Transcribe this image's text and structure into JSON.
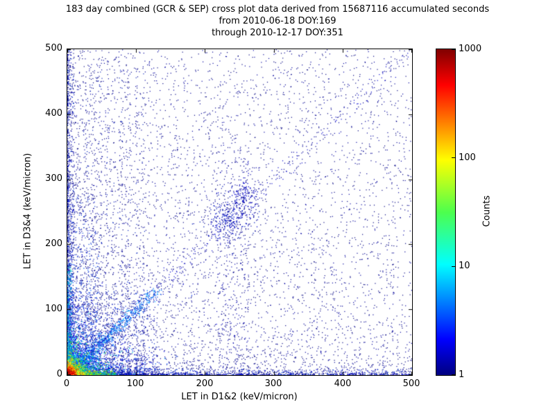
{
  "title": {
    "line1": "183 day combined (GCR & SEP) cross plot data derived from 15687116 accumulated seconds",
    "line2": "from 2010-06-18 DOY:169",
    "line3": "through 2010-12-17 DOY:351"
  },
  "axes": {
    "xlabel": "LET in D1&2 (keV/micron)",
    "ylabel": "LET in D3&4 (keV/micron)",
    "xticks": [
      "0",
      "100",
      "200",
      "300",
      "400",
      "500"
    ],
    "yticks": [
      "0",
      "100",
      "200",
      "300",
      "400",
      "500"
    ]
  },
  "colorbar": {
    "label": "Counts",
    "ticks": [
      "1000",
      "100",
      "10",
      "1"
    ],
    "gradient": [
      "#000080 0%",
      "#0000ff 11%",
      "#00ffff 34%",
      "#4dff4d 50%",
      "#ffff00 66%",
      "#ff0000 89%",
      "#800000 100%"
    ]
  },
  "chart_data": {
    "type": "scatter-heatmap",
    "title": "183 day combined (GCR & SEP) cross plot data derived from 15687116 accumulated seconds",
    "subtitle_from": "from 2010-06-18 DOY:169",
    "subtitle_through": "through 2010-12-17 DOY:351",
    "xlabel": "LET in D1&2 (keV/micron)",
    "ylabel": "LET in D3&4 (keV/micron)",
    "xlim": [
      0,
      500
    ],
    "ylim": [
      0,
      500
    ],
    "xtick_values": [
      0,
      100,
      200,
      300,
      400,
      500
    ],
    "ytick_values": [
      0,
      100,
      200,
      300,
      400,
      500
    ],
    "duration_days": 183,
    "accumulated_seconds": 15687116,
    "date_start": "2010-06-18",
    "doy_start": 169,
    "date_end": "2010-12-17",
    "doy_end": 351,
    "color_scale": {
      "label": "Counts",
      "type": "log",
      "min": 1,
      "max": 1000,
      "colormap": "jet"
    },
    "features": [
      "intense hot spot (red/orange/yellow core up to ~1000 counts) at the origin within ~15 keV/micron",
      "green/cyan halo around origin extending to ~30 keV/micron and along both axes",
      "bright cyan-blue diagonal correlation band y~x, dense up to ~120 keV/micron, faint to 500",
      "faint vertical striations between x~27 and x~110 extending to high LET values",
      "secondary diffuse cluster near (235, 240) to (260, 275)",
      "sparse single-count dark-blue scatter over the full plane, denser toward low x and low y",
      "single-count column along x~0 and row along y~0 spanning the full range"
    ],
    "seed": 1337,
    "layers": [
      {
        "name": "background-sparse",
        "dist": "pow",
        "n": 1600,
        "x": [
          0,
          500,
          1
        ],
        "y": [
          0,
          500,
          1
        ],
        "size": 1.2,
        "colors": [
          "#000080",
          "#000095"
        ]
      },
      {
        "name": "background-left-weighted",
        "dist": "pow",
        "n": 2400,
        "x": [
          0,
          500,
          2.6
        ],
        "y": [
          0,
          500,
          1.15
        ],
        "size": 1.2,
        "colors": [
          "#000080",
          "#0000a0"
        ]
      },
      {
        "name": "background-bottom-weighted",
        "dist": "pow",
        "n": 2000,
        "x": [
          0,
          500,
          1.15
        ],
        "y": [
          0,
          500,
          2.6
        ],
        "size": 1.2,
        "colors": [
          "#000080",
          "#0000a0"
        ]
      },
      {
        "name": "low-left-dense",
        "dist": "pow",
        "n": 900,
        "x": [
          0,
          130,
          1.6
        ],
        "y": [
          0,
          130,
          1.6
        ],
        "size": 1.2,
        "colors": [
          "#0000b4",
          "#0020c8",
          "#000090"
        ]
      },
      {
        "name": "left-low-cloud",
        "dist": "pow",
        "n": 700,
        "x": [
          0,
          45,
          1.8
        ],
        "y": [
          0,
          280,
          1.8
        ],
        "size": 1.2,
        "colors": [
          "#0020cc",
          "#0040dd",
          "#000099"
        ]
      },
      {
        "name": "left-edge-column",
        "dist": "pow",
        "n": 650,
        "x": [
          0,
          9,
          2.5
        ],
        "y": [
          0,
          500,
          1.3
        ],
        "size": 1.2,
        "colors": [
          "#0000cc",
          "#0033cc",
          "#000088"
        ]
      },
      {
        "name": "bottom-edge-row",
        "dist": "pow",
        "n": 850,
        "x": [
          0,
          500,
          1.3
        ],
        "y": [
          0,
          9,
          2.5
        ],
        "size": 1.2,
        "colors": [
          "#0000cc",
          "#0033cc",
          "#000088"
        ]
      },
      {
        "name": "diagonal-faint",
        "dist": "diag",
        "n": 480,
        "t": [
          0,
          500,
          2
        ],
        "jitter": 7,
        "size": 1.2,
        "colors": [
          "#000099",
          "#0000cc"
        ]
      },
      {
        "name": "diagonal-bright",
        "dist": "diag",
        "n": 900,
        "t": [
          0,
          130,
          2.2
        ],
        "jitter": 4.5,
        "size": 1.3,
        "colors": [
          "#0070ff",
          "#00aaff",
          "#0044dd"
        ]
      },
      {
        "name": "vertical-striations",
        "dist": "vlines",
        "xs": [
          27,
          37,
          47,
          57,
          67,
          78,
          89,
          100,
          110
        ],
        "perLine": 110,
        "jitter": 1.7,
        "ymax": 470,
        "ypow": 2.4,
        "size": 1.2,
        "colors": [
          "#000099",
          "#0022bb",
          "#000080"
        ]
      },
      {
        "name": "mid-column",
        "dist": "pow",
        "n": 240,
        "x": [
          215,
          265,
          1
        ],
        "y": [
          0,
          360,
          1.3
        ],
        "size": 1.2,
        "colors": [
          "#000090",
          "#0000b0"
        ]
      },
      {
        "name": "mid-cluster",
        "dist": "gauss",
        "n": 260,
        "cx": 236,
        "cy": 240,
        "sx": 15,
        "sy": 20,
        "size": 1.3,
        "colors": [
          "#000099",
          "#0000cc",
          "#0020bb"
        ]
      },
      {
        "name": "mid-cluster-upper",
        "dist": "gauss",
        "n": 130,
        "cx": 257,
        "cy": 274,
        "sx": 10,
        "sy": 13,
        "size": 1.3,
        "colors": [
          "#000099",
          "#0000cc"
        ]
      },
      {
        "name": "origin-blue-halo",
        "dist": "expradial",
        "n": 1300,
        "scale": 30,
        "size": 1.3,
        "colors": [
          "#0033ee",
          "#0055ff",
          "#0000dd"
        ]
      },
      {
        "name": "origin-cyan",
        "dist": "expradial",
        "n": 900,
        "scale": 16,
        "size": 1.3,
        "colors": [
          "#00cccc",
          "#00aaee",
          "#00e0e0"
        ]
      },
      {
        "name": "origin-green",
        "dist": "expradial",
        "n": 700,
        "scale": 10,
        "size": 1.3,
        "colors": [
          "#30d030",
          "#00cc55",
          "#90e000"
        ]
      },
      {
        "name": "x-axis-streak",
        "dist": "pow",
        "n": 480,
        "x": [
          0,
          70,
          2.2
        ],
        "y": [
          0,
          6,
          2
        ],
        "size": 1.3,
        "colors": [
          "#22cc44",
          "#aadd00",
          "#00bbbb"
        ]
      },
      {
        "name": "y-axis-streak",
        "dist": "pow",
        "n": 430,
        "x": [
          0,
          6,
          2
        ],
        "y": [
          0,
          170,
          2.2
        ],
        "size": 1.3,
        "colors": [
          "#00aacc",
          "#0070ee",
          "#00c8c8"
        ]
      },
      {
        "name": "origin-yellow",
        "dist": "expradial",
        "n": 520,
        "scale": 6.5,
        "size": 1.3,
        "colors": [
          "#ffee00",
          "#ffcc00",
          "#e8ff00"
        ]
      },
      {
        "name": "origin-orange",
        "dist": "expradial",
        "n": 380,
        "scale": 4.2,
        "size": 1.3,
        "colors": [
          "#ff8c00",
          "#ff6a00"
        ]
      },
      {
        "name": "origin-red-core",
        "dist": "expradial",
        "n": 350,
        "scale": 2.4,
        "size": 1.4,
        "colors": [
          "#e00000",
          "#ff2a00",
          "#a00000"
        ]
      }
    ]
  }
}
